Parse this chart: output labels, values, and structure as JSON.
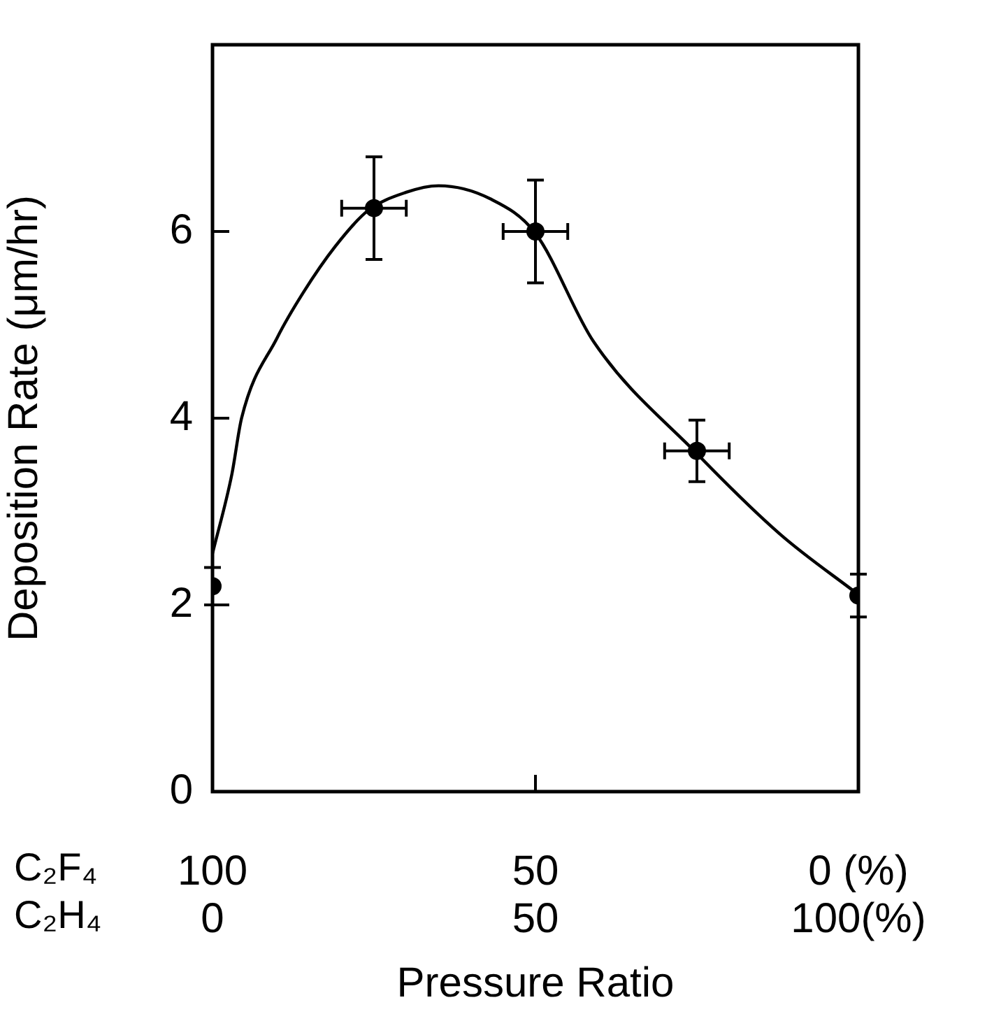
{
  "chart_data": {
    "type": "scatter",
    "xlabel": "Pressure Ratio",
    "ylabel": "Deposition Rate (μm/hr)",
    "annotations": [
      "C₂F₄",
      "C₂H₄"
    ],
    "xlim": [
      100,
      0
    ],
    "xticks": [
      100,
      50,
      {
        "value": 0,
        "label": "0 (%)"
      }
    ],
    "x2lim": [
      0,
      100
    ],
    "x2ticks": [
      0,
      50,
      {
        "value": 100,
        "label": "100(%)"
      }
    ],
    "ylim": [
      0,
      8
    ],
    "yticks": [
      0,
      2,
      4,
      6
    ],
    "series": [
      {
        "color": "#000000",
        "marker": "circle",
        "x": [
          100,
          75,
          50,
          25,
          0
        ],
        "values": [
          2.2,
          6.25,
          6.0,
          3.65,
          2.1
        ],
        "errors": [
          0.2,
          0.55,
          0.55,
          0.33,
          0.23
        ],
        "xerrors": [
          null,
          5,
          5,
          5,
          null
        ]
      },
      {
        "type": "line",
        "color": "#000000",
        "marker": "none",
        "x": [
          100,
          97,
          95.5,
          90,
          86,
          81,
          76,
          70,
          65,
          57,
          50,
          41,
          25,
          12,
          0
        ],
        "values": [
          2.55,
          3.4,
          4.0,
          4.86,
          5.34,
          5.84,
          6.22,
          6.42,
          6.49,
          6.35,
          5.98,
          4.82,
          3.62,
          2.75,
          2.11
        ]
      }
    ]
  }
}
